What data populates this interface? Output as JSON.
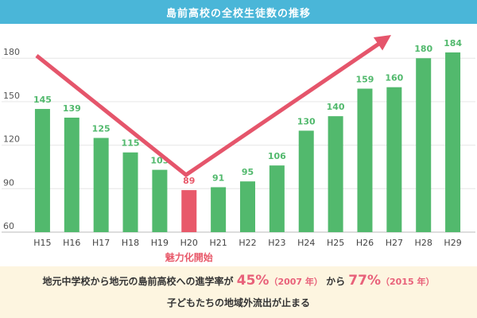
{
  "header": {
    "title": "島前高校の全校生徒数の推移"
  },
  "footer": {
    "line1_prefix": "地元中学校から地元の島前高校への進学率が",
    "pct1": "45%",
    "year1": "（2007 年）",
    "mid": "から",
    "pct2": "77%",
    "year2": "（2015 年）",
    "line2": "子どもたちの地域外流出が止まる"
  },
  "colors": {
    "bar": "#52b96d",
    "highlight": "#e8596a",
    "arrow": "#e5556b",
    "header": "#4ab6d8",
    "footer_bg": "#fdf5e0"
  },
  "chart_data": {
    "type": "bar",
    "title": "島前高校の全校生徒数の推移",
    "categories": [
      "H15",
      "H16",
      "H17",
      "H18",
      "H19",
      "H20",
      "H21",
      "H22",
      "H23",
      "H24",
      "H25",
      "H26",
      "H27",
      "H28",
      "H29"
    ],
    "values": [
      145,
      139,
      125,
      115,
      103,
      89,
      91,
      95,
      106,
      130,
      140,
      159,
      160,
      180,
      184
    ],
    "highlight_index": 5,
    "annotation": "魅力化開始",
    "ylim": [
      60,
      190
    ],
    "yticks": [
      60,
      90,
      120,
      150,
      180
    ],
    "grid": true
  }
}
